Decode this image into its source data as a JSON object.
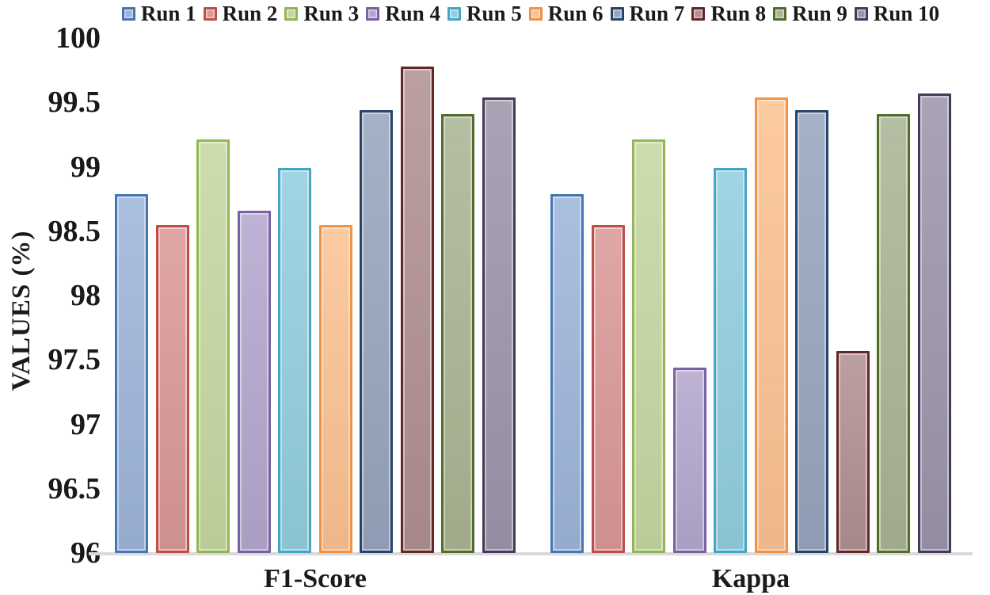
{
  "chart_data": {
    "type": "bar",
    "title": "",
    "ylabel": "VALUES (%)",
    "xlabel": "",
    "ylim": [
      96,
      100
    ],
    "grid": false,
    "legend_position": "top",
    "categories": [
      "F1-Score",
      "Kappa"
    ],
    "yticks": [
      {
        "label": "100",
        "value": 100
      },
      {
        "label": "99.5",
        "value": 99.5
      },
      {
        "label": "99",
        "value": 99
      },
      {
        "label": "98.5",
        "value": 98.5
      },
      {
        "label": "98",
        "value": 98
      },
      {
        "label": "97.5",
        "value": 97.5
      },
      {
        "label": "97",
        "value": 97
      },
      {
        "label": "96.5",
        "value": 96.5
      },
      {
        "label": "96",
        "value": 96
      }
    ],
    "series": [
      {
        "name": "Run 1",
        "fill": "#9db4d9",
        "stroke": "#4676b4",
        "values": [
          98.79,
          98.79
        ]
      },
      {
        "name": "Run 2",
        "fill": "#d99896",
        "stroke": "#bf4e4a",
        "values": [
          98.55,
          98.55
        ]
      },
      {
        "name": "Run 3",
        "fill": "#c5d6a0",
        "stroke": "#93b654",
        "values": [
          99.21,
          99.21
        ]
      },
      {
        "name": "Run 4",
        "fill": "#b3a6cc",
        "stroke": "#7a61a2",
        "values": [
          98.66,
          97.44
        ]
      },
      {
        "name": "Run 5",
        "fill": "#92cdde",
        "stroke": "#43a7c4",
        "values": [
          98.99,
          98.99
        ]
      },
      {
        "name": "Run 6",
        "fill": "#fbc192",
        "stroke": "#f29244",
        "values": [
          98.55,
          99.54
        ]
      },
      {
        "name": "Run 7",
        "fill": "#96a4bc",
        "stroke": "#27456a",
        "values": [
          99.44,
          99.44
        ]
      },
      {
        "name": "Run 8",
        "fill": "#b08f91",
        "stroke": "#632826",
        "values": [
          99.78,
          97.57
        ]
      },
      {
        "name": "Run 9",
        "fill": "#a9b493",
        "stroke": "#526c2b",
        "values": [
          99.41,
          99.41
        ]
      },
      {
        "name": "Run 10",
        "fill": "#9c94a9",
        "stroke": "#463a5b",
        "values": [
          99.54,
          99.57
        ]
      }
    ]
  }
}
